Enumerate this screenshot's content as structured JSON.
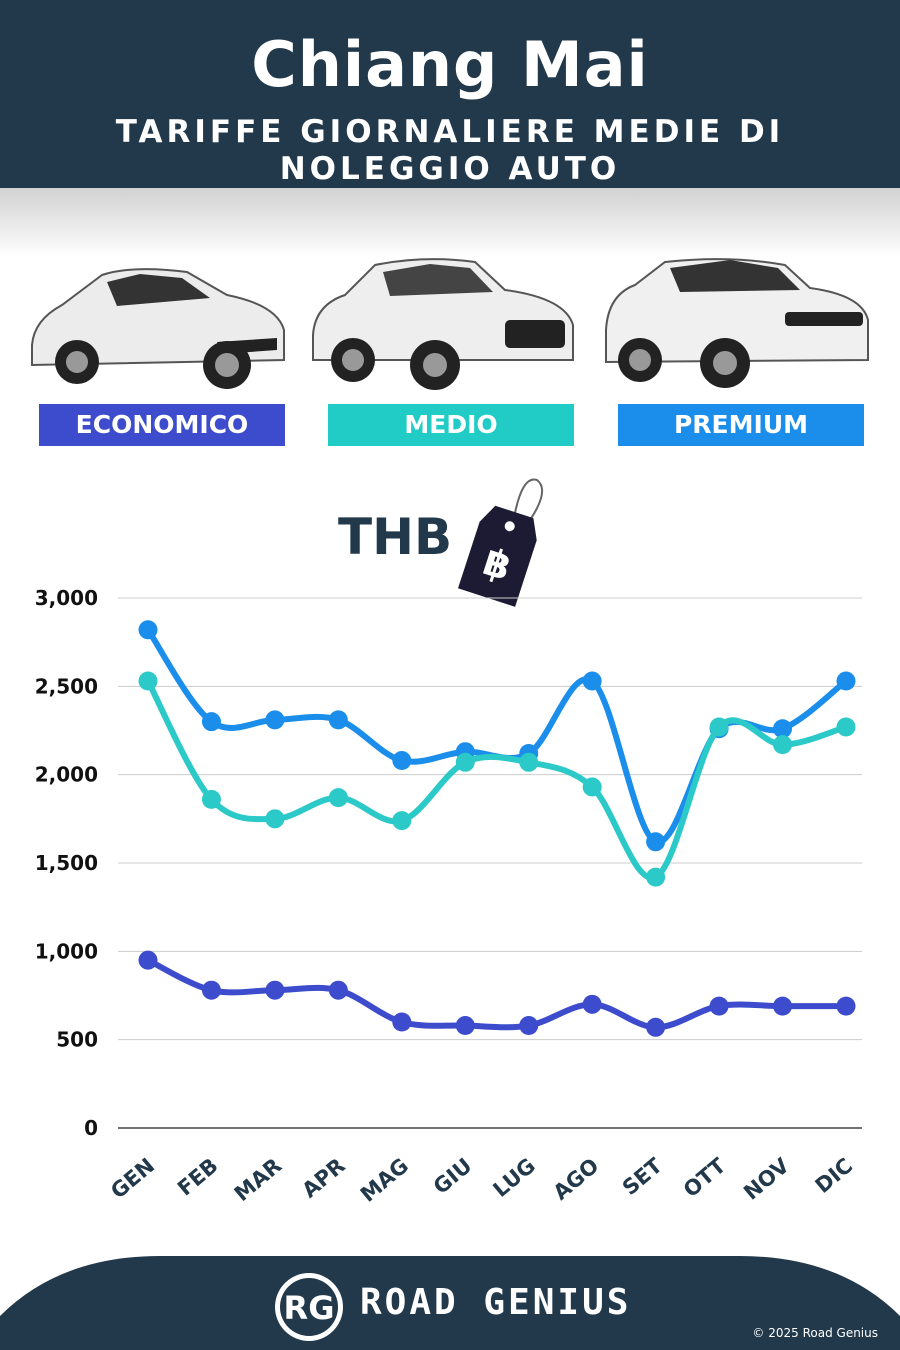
{
  "header": {
    "title": "Chiang Mai",
    "subtitle": "TARIFFE GIORNALIERE MEDIE DI NOLEGGIO AUTO"
  },
  "categories": [
    {
      "label": "ECONOMICO",
      "color": "#3d4ccc"
    },
    {
      "label": "MEDIO",
      "color": "#22ccc6"
    },
    {
      "label": "PREMIUM",
      "color": "#1a8eea"
    }
  ],
  "currency": {
    "code": "THB",
    "symbol": "฿"
  },
  "chart_data": {
    "type": "line",
    "categories": [
      "GEN",
      "FEB",
      "MAR",
      "APR",
      "MAG",
      "GIU",
      "LUG",
      "AGO",
      "SET",
      "OTT",
      "NOV",
      "DIC"
    ],
    "ylim": [
      0,
      3000
    ],
    "yticks": [
      0,
      500,
      1000,
      1500,
      2000,
      2500,
      3000
    ],
    "ytick_labels": [
      "0",
      "500",
      "1,000",
      "1,500",
      "2,000",
      "2,500",
      "3,000"
    ],
    "grid": true,
    "series": [
      {
        "name": "PREMIUM",
        "color": "#1a8eea",
        "values": [
          2820,
          2300,
          2310,
          2310,
          2080,
          2130,
          2120,
          2530,
          1620,
          2260,
          2260,
          2530
        ]
      },
      {
        "name": "MEDIO",
        "color": "#2cc9c9",
        "values": [
          2530,
          1860,
          1750,
          1870,
          1740,
          2070,
          2070,
          1930,
          1420,
          2270,
          2170,
          2270
        ]
      },
      {
        "name": "ECONOMICO",
        "color": "#3d4ccc",
        "values": [
          950,
          780,
          780,
          780,
          600,
          580,
          580,
          700,
          570,
          690,
          690,
          690
        ]
      }
    ]
  },
  "footer": {
    "logo_text": "RG",
    "brand": "ROAD GENIUS",
    "copyright": "© 2025 Road Genius",
    "background": "#22394b"
  }
}
